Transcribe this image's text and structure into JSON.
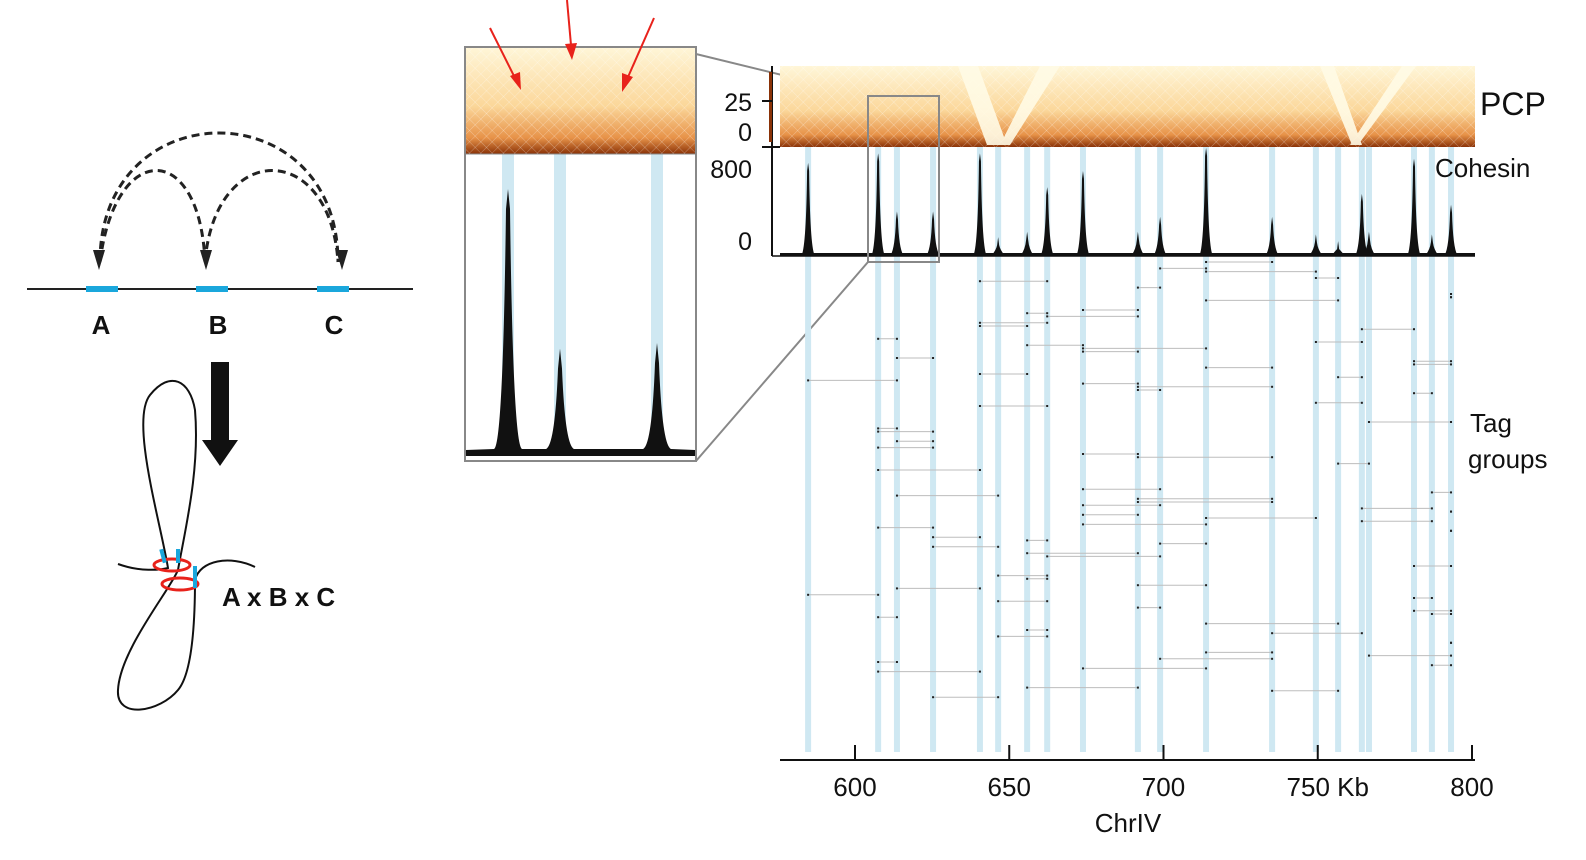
{
  "schematic": {
    "loci": [
      "A",
      "B",
      "C"
    ],
    "complex_label": "A x B x C"
  },
  "tracks": {
    "pcp_label": "PCP",
    "pcp_ticks": [
      "25",
      "0"
    ],
    "cohesin_label": "Cohesin",
    "cohesin_ticks": [
      "800",
      "0"
    ],
    "tag_label_line1": "Tag",
    "tag_label_line2": "groups"
  },
  "axis": {
    "ticks": [
      "600",
      "650",
      "700",
      "750 Kb",
      "800"
    ],
    "tick_values": [
      600,
      650,
      700,
      750,
      800
    ],
    "title": "ChrIV",
    "range": [
      576,
      800
    ]
  },
  "colors": {
    "band": "#cfe8f2",
    "locus": "#1aa7dc",
    "ring": "#e8221b",
    "arrow_red": "#e8221b",
    "peak": "#111111"
  },
  "chart_data": {
    "type": "area",
    "title": "Cohesin",
    "xlabel": "ChrIV",
    "ylim": [
      0,
      800
    ],
    "peaks_kb": [
      584.8,
      607.5,
      613.6,
      625.3,
      640.5,
      646.4,
      655.8,
      662.3,
      673.9,
      691.7,
      698.9,
      713.8,
      735.2,
      749.4,
      756.6,
      764.3,
      766.6,
      781.2,
      787.0,
      793.2
    ],
    "peak_heights": [
      690,
      760,
      330,
      330,
      760,
      140,
      180,
      510,
      630,
      180,
      290,
      800,
      290,
      160,
      110,
      460,
      180,
      720,
      160,
      380
    ],
    "zoom_region_kb": [
      604,
      628
    ]
  }
}
